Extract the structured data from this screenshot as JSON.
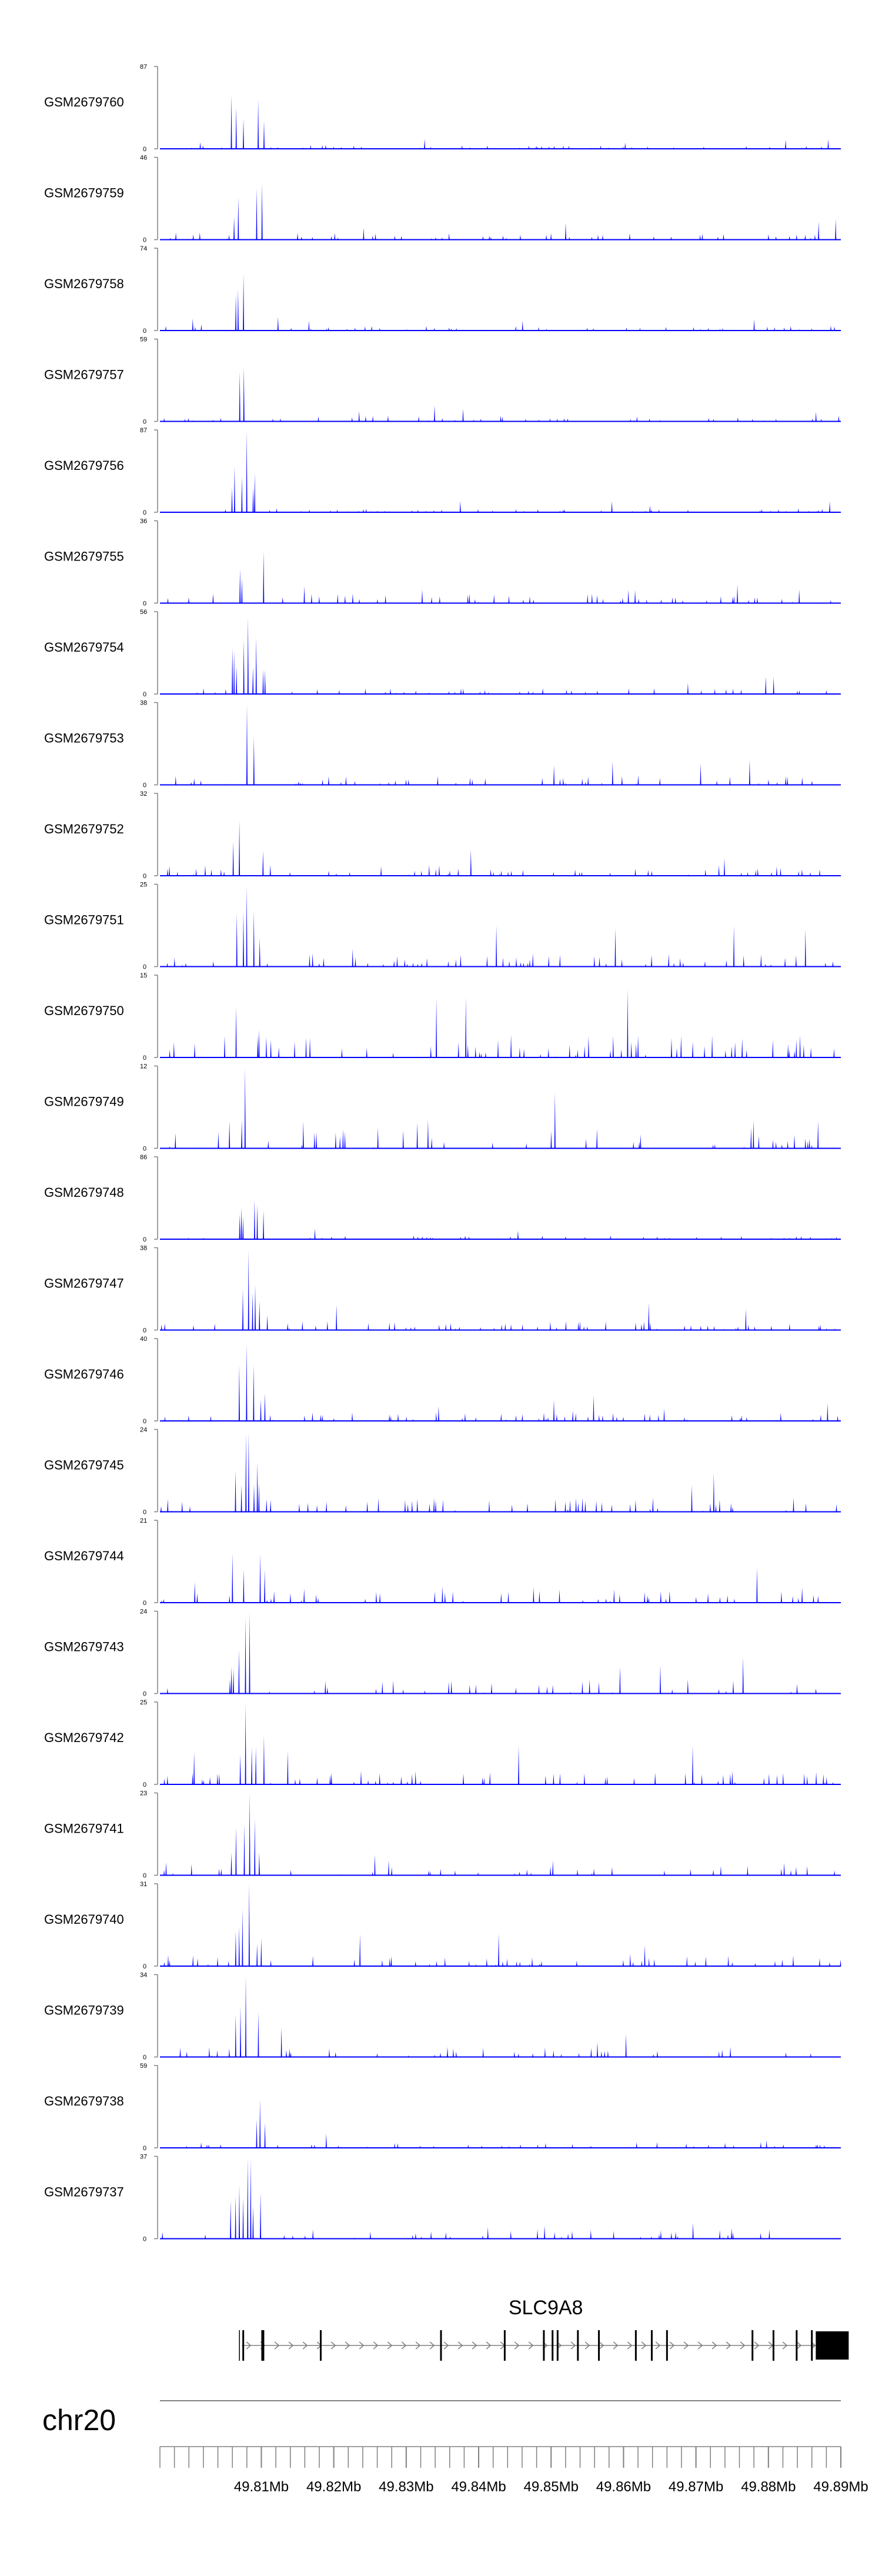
{
  "chart_data": {
    "type": "area",
    "title": "",
    "region": {
      "chromosome": "chr20",
      "start_mb": 49.796,
      "end_mb": 49.89
    },
    "fill_color": "#0000ff",
    "axis_color": "#808080",
    "tracks": [
      {
        "name": "GSM2679760",
        "ymax": "87",
        "ymin": "0"
      },
      {
        "name": "GSM2679759",
        "ymax": "46",
        "ymin": "0"
      },
      {
        "name": "GSM2679758",
        "ymax": "74",
        "ymin": "0"
      },
      {
        "name": "GSM2679757",
        "ymax": "59",
        "ymin": "0"
      },
      {
        "name": "GSM2679756",
        "ymax": "87",
        "ymin": "0"
      },
      {
        "name": "GSM2679755",
        "ymax": "36",
        "ymin": "0"
      },
      {
        "name": "GSM2679754",
        "ymax": "56",
        "ymin": "0"
      },
      {
        "name": "GSM2679753",
        "ymax": "38",
        "ymin": "0"
      },
      {
        "name": "GSM2679752",
        "ymax": "32",
        "ymin": "0"
      },
      {
        "name": "GSM2679751",
        "ymax": "25",
        "ymin": "0"
      },
      {
        "name": "GSM2679750",
        "ymax": "15",
        "ymin": "0"
      },
      {
        "name": "GSM2679749",
        "ymax": "12",
        "ymin": "0"
      },
      {
        "name": "GSM2679748",
        "ymax": "86",
        "ymin": "0"
      },
      {
        "name": "GSM2679747",
        "ymax": "38",
        "ymin": "0"
      },
      {
        "name": "GSM2679746",
        "ymax": "40",
        "ymin": "0"
      },
      {
        "name": "GSM2679745",
        "ymax": "24",
        "ymin": "0"
      },
      {
        "name": "GSM2679744",
        "ymax": "21",
        "ymin": "0"
      },
      {
        "name": "GSM2679743",
        "ymax": "24",
        "ymin": "0"
      },
      {
        "name": "GSM2679742",
        "ymax": "25",
        "ymin": "0"
      },
      {
        "name": "GSM2679741",
        "ymax": "23",
        "ymin": "0"
      },
      {
        "name": "GSM2679740",
        "ymax": "31",
        "ymin": "0"
      },
      {
        "name": "GSM2679739",
        "ymax": "34",
        "ymin": "0"
      },
      {
        "name": "GSM2679738",
        "ymax": "59",
        "ymin": "0"
      },
      {
        "name": "GSM2679737",
        "ymax": "37",
        "ymin": "0"
      }
    ],
    "gene": {
      "name": "SLC9A8",
      "strand": "+",
      "start_mb": 49.8073,
      "end_mb": 49.8896,
      "exons_mb": [
        49.8075,
        49.8102,
        49.8182,
        49.8348,
        49.8436,
        49.849,
        49.8502,
        49.8509,
        49.8537,
        49.8566,
        49.8617,
        49.8639,
        49.866,
        49.8778,
        49.8807,
        49.8839,
        49.886,
        49.888
      ]
    },
    "chromosome_label": "chr20",
    "x_tick_labels": [
      "49.81Mb",
      "49.82Mb",
      "49.83Mb",
      "49.84Mb",
      "49.85Mb",
      "49.86Mb",
      "49.87Mb",
      "49.88Mb",
      "49.89Mb"
    ],
    "x_tick_values_mb": [
      49.81,
      49.82,
      49.83,
      49.84,
      49.85,
      49.86,
      49.87,
      49.88,
      49.89
    ]
  }
}
